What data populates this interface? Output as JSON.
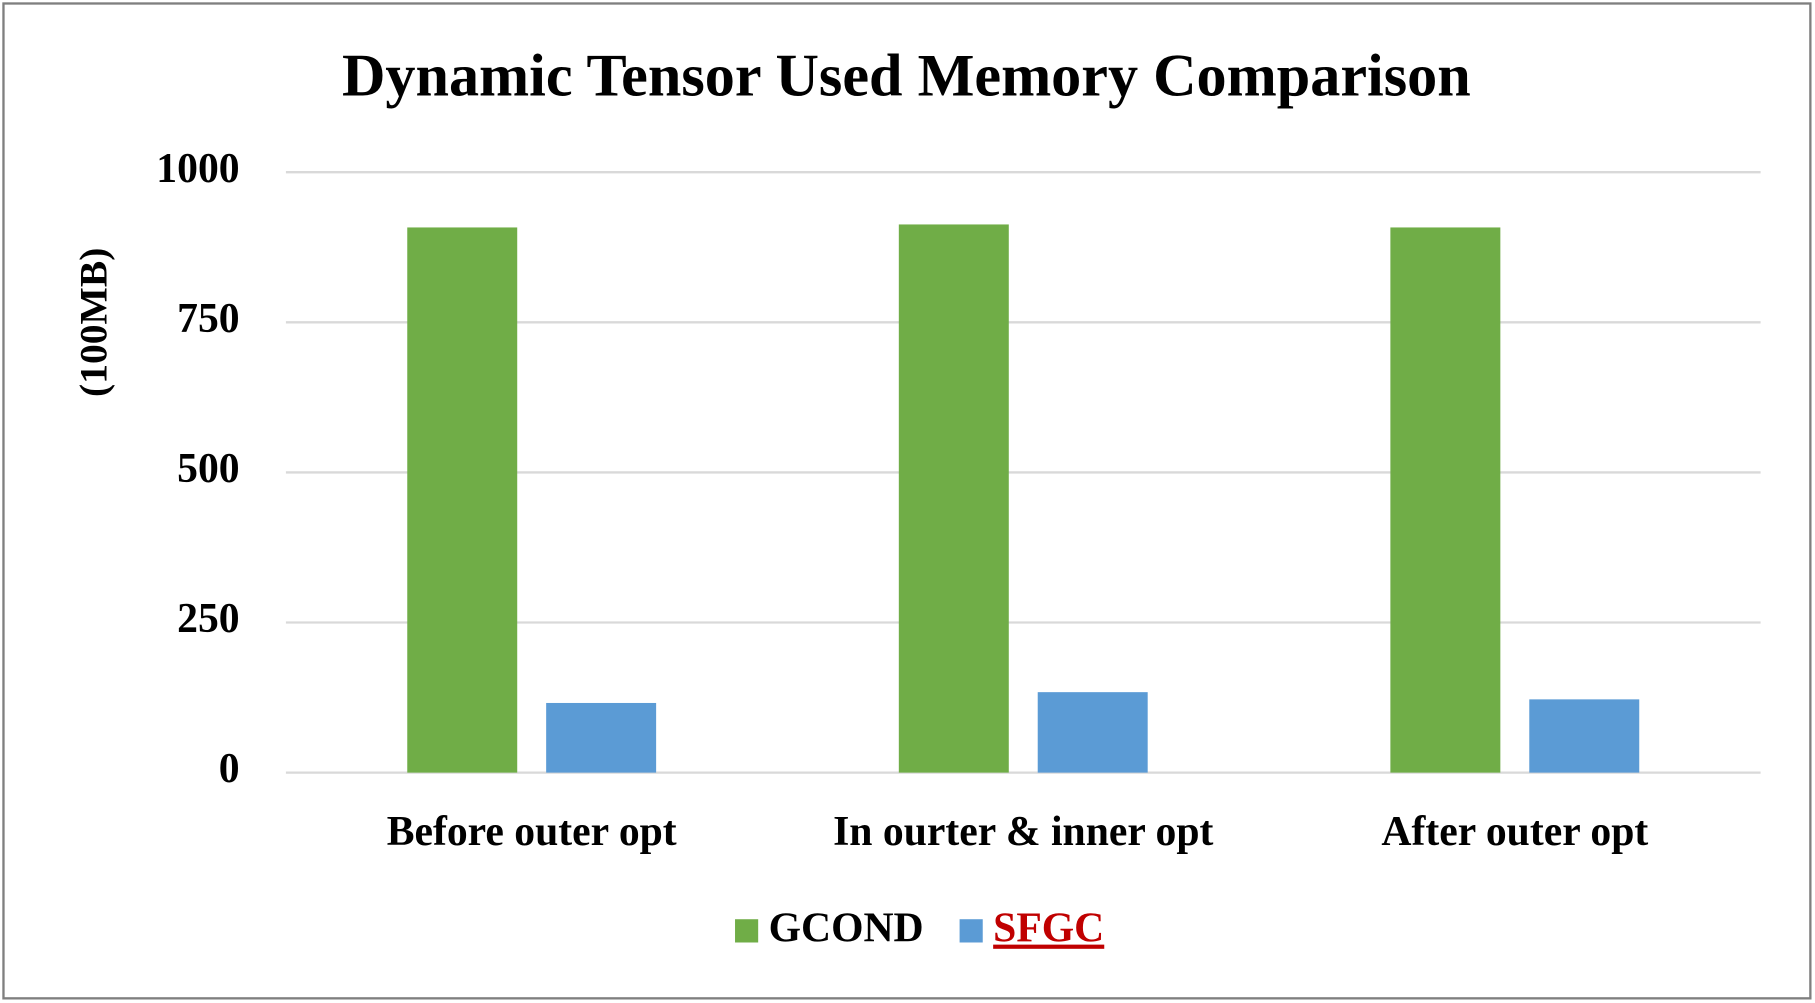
{
  "chart_data": {
    "type": "bar",
    "title": "Dynamic Tensor Used Memory Comparison",
    "y_label": "(100MB)",
    "categories": [
      "Before outer opt",
      "In ourter & inner opt",
      "After outer opt"
    ],
    "series": [
      {
        "name": "GCOND",
        "color": "#70ad47",
        "values": [
          908,
          913,
          908
        ]
      },
      {
        "name": "SFGC",
        "color": "#5b9bd5",
        "values": [
          116,
          134,
          122
        ]
      }
    ],
    "ylim": [
      0,
      1000
    ],
    "yticks": [
      0,
      250,
      500,
      750,
      1000
    ],
    "grid": true,
    "legend": "bottom"
  }
}
